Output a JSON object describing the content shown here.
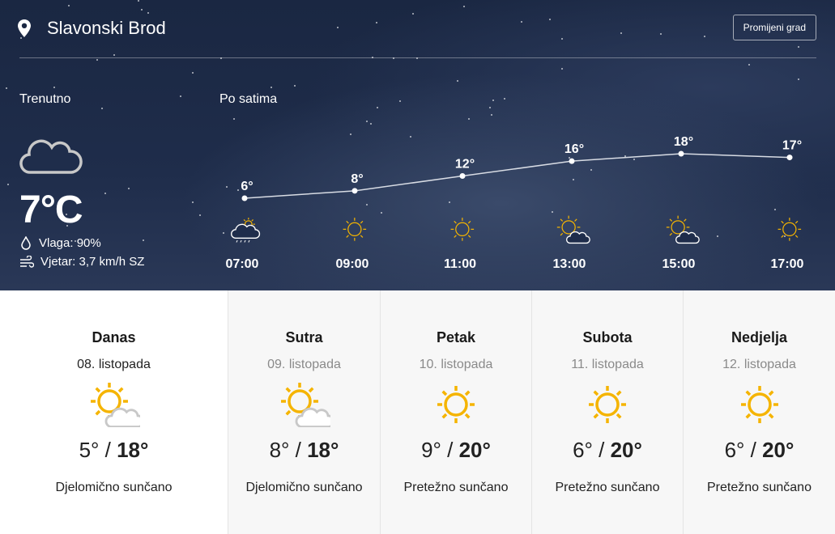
{
  "header": {
    "city": "Slavonski Brod",
    "change_city_label": "Promijeni grad",
    "icon": "location-pin-icon"
  },
  "current": {
    "label": "Trenutno",
    "temperature": "7°C",
    "icon": "cloud-moon-icon",
    "humidity": "Vlaga: 90%",
    "wind": "Vjetar: 3,7 km/h SZ"
  },
  "hourly": {
    "label": "Po satima",
    "items": [
      {
        "time": "07:00",
        "temp": 6,
        "temp_label": "6°",
        "icon": "rain-cloud-sun"
      },
      {
        "time": "09:00",
        "temp": 8,
        "temp_label": "8°",
        "icon": "sun"
      },
      {
        "time": "11:00",
        "temp": 12,
        "temp_label": "12°",
        "icon": "sun"
      },
      {
        "time": "13:00",
        "temp": 16,
        "temp_label": "16°",
        "icon": "sun-cloud"
      },
      {
        "time": "15:00",
        "temp": 18,
        "temp_label": "18°",
        "icon": "sun-cloud"
      },
      {
        "time": "17:00",
        "temp": 17,
        "temp_label": "17°",
        "icon": "sun"
      }
    ]
  },
  "days": [
    {
      "name": "Danas",
      "date": "08. listopada",
      "min": "5°",
      "max": "18°",
      "desc": "Djelomično sunčano",
      "icon": "sun-cloud",
      "selected": true
    },
    {
      "name": "Sutra",
      "date": "09. listopada",
      "min": "8°",
      "max": "18°",
      "desc": "Djelomično sunčano",
      "icon": "sun-cloud"
    },
    {
      "name": "Petak",
      "date": "10. listopada",
      "min": "9°",
      "max": "20°",
      "desc": "Pretežno sunčano",
      "icon": "sun"
    },
    {
      "name": "Subota",
      "date": "11. listopada",
      "min": "6°",
      "max": "20°",
      "desc": "Pretežno sunčano",
      "icon": "sun"
    },
    {
      "name": "Nedjelja",
      "date": "12. listopada",
      "min": "6°",
      "max": "20°",
      "desc": "Pretežno sunčano",
      "icon": "sun"
    }
  ],
  "colors": {
    "sun": "#f5b400",
    "cloud": "#c8c8c8",
    "sky": "#1f2d4b"
  }
}
